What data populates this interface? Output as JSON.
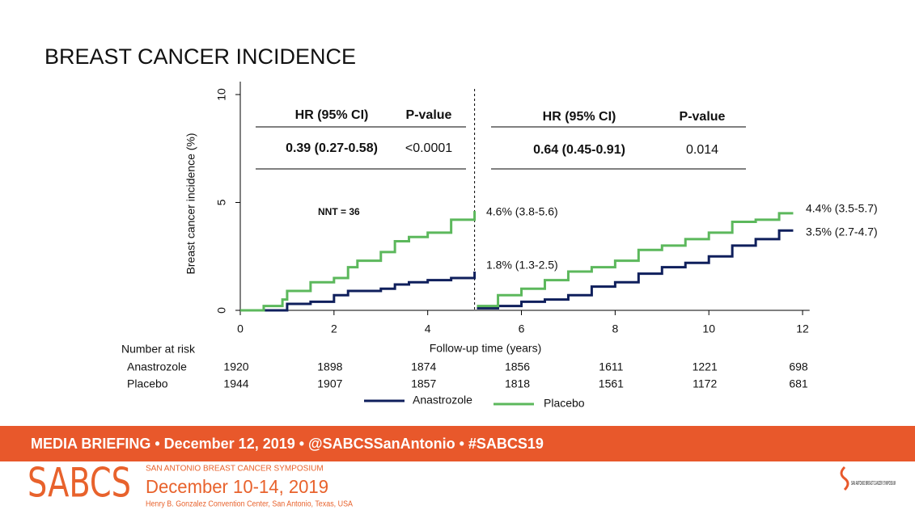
{
  "title": "BREAST CANCER INCIDENCE",
  "chart_data": {
    "type": "step",
    "ylabel": "Breast cancer incidence (%)",
    "xlabel": "Follow-up time (years)",
    "xlim": [
      0,
      12.15
    ],
    "ylim": [
      0,
      10.6
    ],
    "xticks": [
      0,
      2,
      4,
      6,
      8,
      10,
      12
    ],
    "yticks": [
      0,
      5,
      10
    ],
    "divider_x": 5,
    "x": [
      0,
      0.5,
      0.9,
      1,
      1.5,
      2,
      2.3,
      2.5,
      3,
      3.3,
      3.6,
      4,
      4.5,
      5,
      5.02,
      5.05,
      5.5,
      6,
      6.5,
      7,
      7.5,
      8,
      8.5,
      9,
      9.5,
      10,
      10.5,
      11,
      11.5,
      11.8
    ],
    "series": [
      {
        "name": "Anastrozole",
        "color": "#0f1f5c",
        "values": [
          0,
          0,
          0,
          0.3,
          0.4,
          0.7,
          0.9,
          0.9,
          1.0,
          1.2,
          1.3,
          1.4,
          1.5,
          1.8,
          null,
          0.1,
          0.2,
          0.4,
          0.5,
          0.7,
          1.1,
          1.3,
          1.7,
          2.0,
          2.2,
          2.5,
          3.0,
          3.3,
          3.7,
          3.7
        ]
      },
      {
        "name": "Placebo",
        "color": "#5cb85c",
        "values": [
          0,
          0.2,
          0.5,
          0.9,
          1.3,
          1.5,
          2.0,
          2.3,
          2.7,
          3.2,
          3.4,
          3.6,
          4.2,
          4.6,
          null,
          0.2,
          0.7,
          1.0,
          1.4,
          1.8,
          2.0,
          2.3,
          2.8,
          3.0,
          3.3,
          3.6,
          4.1,
          4.2,
          4.5,
          4.5
        ]
      }
    ],
    "hr_tables": [
      {
        "headers": [
          "HR (95% CI)",
          "P-value"
        ],
        "row": [
          "0.39 (0.27-0.58)",
          "<0.0001"
        ]
      },
      {
        "headers": [
          "HR (95% CI)",
          "P-value"
        ],
        "row": [
          "0.64 (0.45-0.91)",
          "0.014"
        ]
      }
    ],
    "annotations": [
      "NNT = 36",
      "4.6% (3.8-5.6)",
      "1.8% (1.3-2.5)",
      "4.4% (3.5-5.7)",
      "3.5% (2.7-4.7)"
    ],
    "risk_table": {
      "title": "Number at risk",
      "rows": [
        {
          "name": "Anastrozole",
          "values": [
            1920,
            1898,
            1874,
            1856,
            1611,
            1221,
            698
          ]
        },
        {
          "name": "Placebo",
          "values": [
            1944,
            1907,
            1857,
            1818,
            1561,
            1172,
            681
          ]
        }
      ]
    }
  },
  "footer": {
    "banner": "MEDIA BRIEFING  •  December 12, 2019  •  @SABCSSanAntonio  •  #SABCS19",
    "logo": "SABCS",
    "symposium": "SAN ANTONIO BREAST CANCER SYMPOSIUM",
    "dates": "December 10-14, 2019",
    "venue": "Henry B. Gonzalez Convention Center, San Antonio, Texas, USA",
    "right_logo": "SAN ANTONIO BREAST CANCER SYMPOSIUM"
  }
}
